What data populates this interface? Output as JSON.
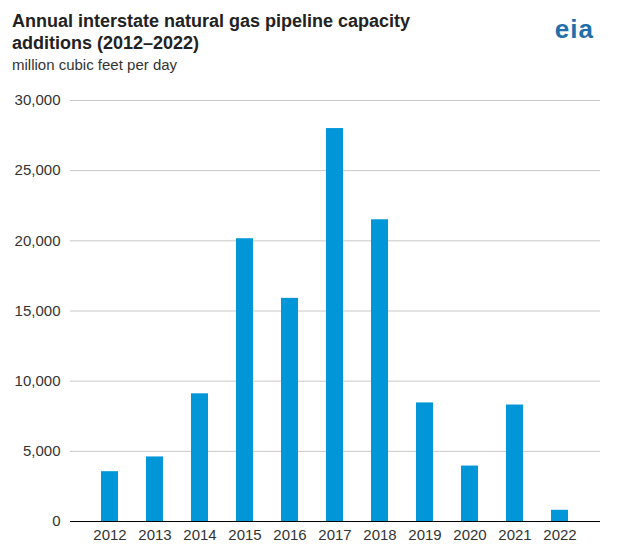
{
  "chart_data": {
    "type": "bar",
    "title": "Annual interstate natural gas pipeline capacity additions (2012–2022)",
    "subtitle": "million cubic feet per day",
    "source_logo": "eia",
    "categories": [
      "2012",
      "2013",
      "2014",
      "2015",
      "2016",
      "2017",
      "2018",
      "2019",
      "2020",
      "2021",
      "2022"
    ],
    "values": [
      3550,
      4600,
      9100,
      20150,
      15900,
      28000,
      21500,
      8450,
      3950,
      8300,
      800
    ],
    "color": "#0096d7",
    "ylim": [
      0,
      30000
    ],
    "yticks": [
      0,
      {
        "value": 5000,
        "label": "5,000"
      },
      {
        "value": 10000,
        "label": "10,000"
      },
      {
        "value": 15000,
        "label": "15,000"
      },
      {
        "value": 20000,
        "label": "20,000"
      },
      {
        "value": 25000,
        "label": "25,000"
      },
      {
        "value": 30000,
        "label": "30,000"
      }
    ],
    "grid": true
  }
}
